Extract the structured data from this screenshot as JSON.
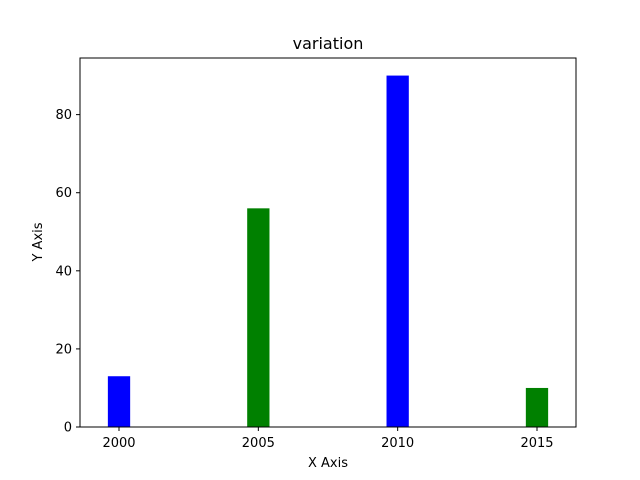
{
  "chart_data": {
    "type": "bar",
    "title": "variation",
    "xlabel": "X Axis",
    "ylabel": "Y Axis",
    "x": [
      2000,
      2005,
      2010,
      2015
    ],
    "values": [
      13,
      56,
      90,
      10
    ],
    "colors": [
      "#0000ff",
      "#008000",
      "#0000ff",
      "#008000"
    ],
    "xlim": [
      1998.6,
      2016.4
    ],
    "ylim": [
      0,
      94.5
    ],
    "xticks": [
      2000,
      2005,
      2010,
      2015
    ],
    "yticks": [
      0,
      20,
      40,
      60,
      80
    ],
    "bar_width": 0.8,
    "grid": false,
    "legend": "none"
  }
}
